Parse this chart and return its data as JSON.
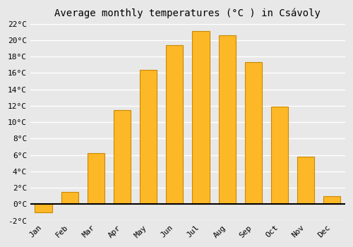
{
  "title": "Average monthly temperatures (°C ) in Csávoly",
  "months": [
    "Jan",
    "Feb",
    "Mar",
    "Apr",
    "May",
    "Jun",
    "Jul",
    "Aug",
    "Sep",
    "Oct",
    "Nov",
    "Dec"
  ],
  "values": [
    -1.0,
    1.5,
    6.2,
    11.5,
    16.4,
    19.4,
    21.1,
    20.6,
    17.3,
    11.9,
    5.8,
    1.0
  ],
  "bar_color": "#FDB827",
  "bar_edge_color": "#CC8800",
  "ylim": [
    -2,
    22
  ],
  "yticks": [
    -2,
    0,
    2,
    4,
    6,
    8,
    10,
    12,
    14,
    16,
    18,
    20,
    22
  ],
  "ytick_labels": [
    "-2°C",
    "0°C",
    "2°C",
    "4°C",
    "6°C",
    "8°C",
    "10°C",
    "12°C",
    "14°C",
    "16°C",
    "18°C",
    "20°C",
    "22°C"
  ],
  "background_color": "#e8e8e8",
  "grid_color": "#ffffff",
  "title_fontsize": 10,
  "tick_fontsize": 8,
  "figure_bg": "#e8e8e8",
  "bar_width": 0.65
}
